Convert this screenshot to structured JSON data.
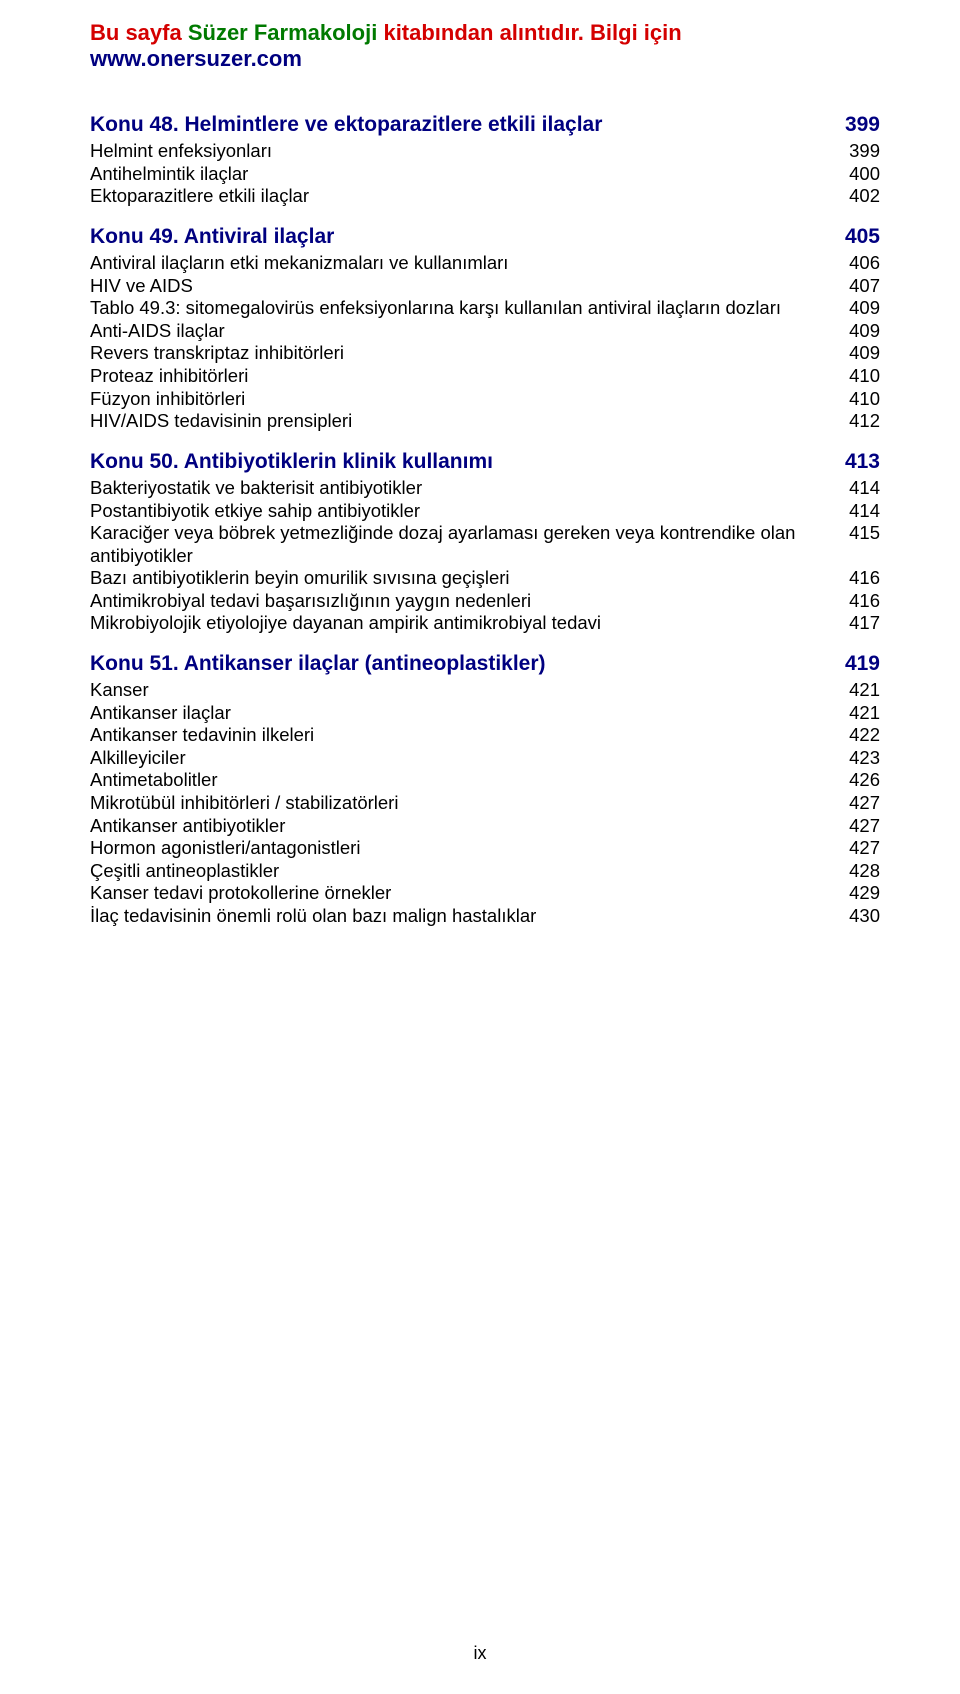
{
  "colors": {
    "text_black": "#000000",
    "heading_blue": "#000080",
    "header_red": "#d40000",
    "header_green": "#007a00",
    "background": "#ffffff"
  },
  "typography": {
    "body_font_size_pt": 14,
    "heading_font_size_pt": 16,
    "font_family": "Arial"
  },
  "header": {
    "red": "Bu sayfa ",
    "green": "Süzer Farmakoloji ",
    "red2": "kitabından alıntıdır. Bilgi için ",
    "blue": "www.onersuzer.com"
  },
  "footer": {
    "page": "ix"
  },
  "sections": [
    {
      "title": "Konu 48. Helmintlere ve ektoparazitlere etkili ilaçlar",
      "page": "399",
      "entries": [
        {
          "label": "Helmint enfeksiyonları",
          "page": "399"
        },
        {
          "label": "Antihelmintik ilaçlar",
          "page": "400"
        },
        {
          "label": "Ektoparazitlere etkili ilaçlar",
          "page": "402"
        }
      ]
    },
    {
      "title": "Konu 49. Antiviral ilaçlar",
      "page": "405",
      "entries": [
        {
          "label": "Antiviral ilaçların etki mekanizmaları ve kullanımları",
          "page": "406"
        },
        {
          "label": "HIV ve AIDS",
          "page": "407"
        },
        {
          "label": "Tablo 49.3: sitomegalovirüs enfeksiyonlarına karşı kullanılan antiviral ilaçların dozları",
          "page": "409"
        },
        {
          "label": "Anti-AIDS ilaçlar",
          "page": "409"
        },
        {
          "label": "Revers transkriptaz inhibitörleri",
          "page": "409"
        },
        {
          "label": "Proteaz inhibitörleri",
          "page": "410"
        },
        {
          "label": "Füzyon inhibitörleri",
          "page": "410"
        },
        {
          "label": "HIV/AIDS tedavisinin prensipleri",
          "page": "412"
        }
      ]
    },
    {
      "title": "Konu 50. Antibiyotiklerin klinik kullanımı",
      "page": "413",
      "entries": [
        {
          "label": "Bakteriyostatik ve bakterisit antibiyotikler",
          "page": "414"
        },
        {
          "label": "Postantibiyotik etkiye sahip antibiyotikler",
          "page": "414"
        },
        {
          "label": "Karaciğer veya böbrek yetmezliğinde dozaj ayarlaması gereken veya kontrendike olan antibiyotikler",
          "page": "415"
        },
        {
          "label": "Bazı antibiyotiklerin beyin omurilik sıvısına geçişleri",
          "page": "416"
        },
        {
          "label": "Antimikrobiyal tedavi başarısızlığının yaygın nedenleri",
          "page": "416"
        },
        {
          "label": "Mikrobiyolojik etiyolojiye dayanan ampirik antimikrobiyal tedavi",
          "page": "417"
        }
      ]
    },
    {
      "title": "Konu 51. Antikanser ilaçlar (antineoplastikler)",
      "page": "419",
      "entries": [
        {
          "label": "Kanser",
          "page": "421"
        },
        {
          "label": "Antikanser ilaçlar",
          "page": "421"
        },
        {
          "label": "Antikanser tedavinin ilkeleri",
          "page": "422"
        },
        {
          "label": "Alkilleyiciler",
          "page": "423"
        },
        {
          "label": "Antimetabolitler",
          "page": "426"
        },
        {
          "label": "Mikrotübül inhibitörleri / stabilizatörleri",
          "page": "427"
        },
        {
          "label": "Antikanser antibiyotikler",
          "page": "427"
        },
        {
          "label": "Hormon agonistleri/antagonistleri",
          "page": "427"
        },
        {
          "label": "Çeşitli antineoplastikler",
          "page": "428"
        },
        {
          "label": "Kanser tedavi protokollerine örnekler",
          "page": "429"
        },
        {
          "label": "İlaç tedavisinin önemli rolü olan bazı malign hastalıklar",
          "page": "430"
        }
      ]
    }
  ]
}
